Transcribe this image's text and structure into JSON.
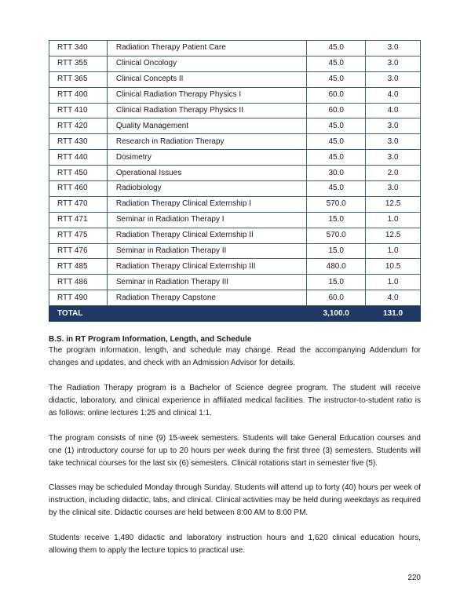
{
  "courses": [
    {
      "code": "RTT 340",
      "title": "Radiation Therapy Patient Care",
      "hours": "45.0",
      "credits": "3.0"
    },
    {
      "code": "RTT 355",
      "title": "Clinical Oncology",
      "hours": "45.0",
      "credits": "3.0"
    },
    {
      "code": "RTT 365",
      "title": "Clinical Concepts II",
      "hours": "45.0",
      "credits": "3.0"
    },
    {
      "code": "RTT 400",
      "title": "Clinical Radiation Therapy Physics I",
      "hours": "60.0",
      "credits": "4.0"
    },
    {
      "code": "RTT 410",
      "title": "Clinical Radiation Therapy Physics II",
      "hours": "60.0",
      "credits": "4.0"
    },
    {
      "code": "RTT 420",
      "title": "Quality Management",
      "hours": "45.0",
      "credits": "3.0"
    },
    {
      "code": "RTT 430",
      "title": "Research in Radiation Therapy",
      "hours": "45.0",
      "credits": "3.0"
    },
    {
      "code": "RTT 440",
      "title": "Dosimetry",
      "hours": "45.0",
      "credits": "3.0"
    },
    {
      "code": "RTT 450",
      "title": "Operational Issues",
      "hours": "30.0",
      "credits": "2.0"
    },
    {
      "code": "RTT 460",
      "title": "Radiobiology",
      "hours": "45.0",
      "credits": "3.0"
    },
    {
      "code": "RTT 470",
      "title": "Radiation Therapy Clinical Externship I",
      "hours": "570.0",
      "credits": "12.5"
    },
    {
      "code": "RTT 471",
      "title": "Seminar in Radiation Therapy I",
      "hours": "15.0",
      "credits": "1.0"
    },
    {
      "code": "RTT 475",
      "title": "Radiation Therapy Clinical Externship II",
      "hours": "570.0",
      "credits": "12.5"
    },
    {
      "code": "RTT 476",
      "title": "Seminar in Radiation Therapy II",
      "hours": "15.0",
      "credits": "1.0"
    },
    {
      "code": "RTT 485",
      "title": "Radiation Therapy Clinical Externship III",
      "hours": "480.0",
      "credits": "10.5"
    },
    {
      "code": "RTT 486",
      "title": "Seminar in Radiation Therapy III",
      "hours": "15.0",
      "credits": "1.0"
    },
    {
      "code": "RTT 490",
      "title": "Radiation Therapy Capstone",
      "hours": "60.0",
      "credits": "4.0"
    }
  ],
  "total": {
    "label": "TOTAL",
    "hours": "3,100.0",
    "credits": "131.0"
  },
  "colors": {
    "total_row": "#1f3864",
    "border": "#3f5f80"
  },
  "section_heading": "B.S. in RT Program Information, Length, and Schedule",
  "paragraphs": [
    "The program information, length, and schedule may change. Read the accompanying Addendum for changes and updates, and check with an Admission Advisor for details.",
    "The Radiation Therapy program is a Bachelor of Science degree program. The student will receive didactic, laboratory, and clinical experience in affiliated medical facilities. The instructor-to-student ratio is as follows: online lectures 1:25 and clinical 1:1.",
    "The program consists of nine (9) 15-week semesters. Students will take General Education courses and one (1) introductory course for up to 20 hours per week during the first three (3) semesters. Students will take technical courses for the last six (6) semesters. Clinical rotations start in semester five (5).",
    "Classes may be scheduled Monday through Sunday. Students will attend up to forty (40) hours per week of instruction, including didactic, labs, and clinical. Clinical activities may be held during weekdays as required by the clinical site. Didactic courses are held between 8:00 AM to 8:00 PM.",
    "Students receive 1,480 didactic and laboratory instruction hours and 1,620 clinical education hours, allowing them to apply the lecture topics to practical use."
  ],
  "page_number": "220"
}
